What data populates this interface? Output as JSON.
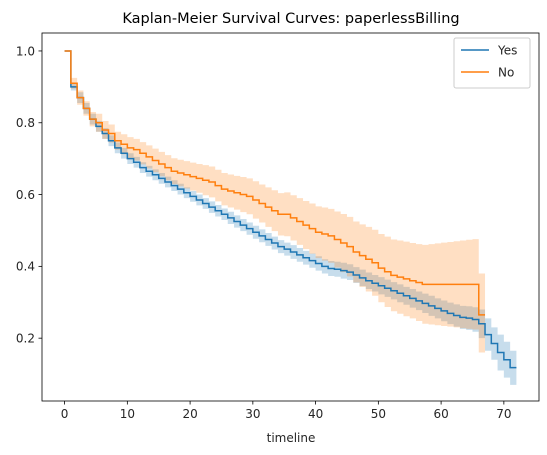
{
  "chart_data": {
    "type": "line",
    "step": true,
    "title": "Kaplan-Meier Survival Curves: paperlessBilling",
    "xlabel": "timeline",
    "ylabel": "",
    "xlim": [
      -3.6,
      75.6
    ],
    "ylim": [
      0.025,
      1.05
    ],
    "x_ticks": [
      0,
      10,
      20,
      30,
      40,
      50,
      60,
      70
    ],
    "y_ticks": [
      0.2,
      0.4,
      0.6,
      0.8,
      1.0
    ],
    "x_tick_labels": [
      "0",
      "10",
      "20",
      "30",
      "40",
      "50",
      "60",
      "70"
    ],
    "y_tick_labels": [
      "0.2",
      "0.4",
      "0.6",
      "0.8",
      "1.0"
    ],
    "grid": false,
    "legend_position": "top-right",
    "series": [
      {
        "name": "Yes",
        "color": "#1f77b4",
        "band_color": "#1f77b4",
        "x": [
          0,
          1,
          2,
          3,
          4,
          5,
          6,
          7,
          8,
          9,
          10,
          11,
          12,
          13,
          14,
          15,
          16,
          17,
          18,
          19,
          20,
          21,
          22,
          23,
          24,
          25,
          26,
          27,
          28,
          29,
          30,
          31,
          32,
          33,
          34,
          35,
          36,
          37,
          38,
          39,
          40,
          41,
          42,
          43,
          44,
          45,
          46,
          47,
          48,
          49,
          50,
          51,
          52,
          53,
          54,
          55,
          56,
          57,
          58,
          59,
          60,
          61,
          62,
          63,
          64,
          65,
          66,
          67,
          68,
          69,
          70,
          71,
          72
        ],
        "y": [
          1.0,
          0.9,
          0.87,
          0.84,
          0.81,
          0.79,
          0.77,
          0.75,
          0.73,
          0.715,
          0.7,
          0.69,
          0.675,
          0.665,
          0.655,
          0.645,
          0.635,
          0.625,
          0.615,
          0.605,
          0.595,
          0.585,
          0.575,
          0.565,
          0.555,
          0.545,
          0.535,
          0.525,
          0.515,
          0.505,
          0.495,
          0.485,
          0.475,
          0.465,
          0.455,
          0.448,
          0.44,
          0.432,
          0.424,
          0.416,
          0.408,
          0.4,
          0.394,
          0.392,
          0.388,
          0.384,
          0.376,
          0.368,
          0.36,
          0.353,
          0.346,
          0.339,
          0.332,
          0.325,
          0.318,
          0.311,
          0.304,
          0.297,
          0.29,
          0.283,
          0.276,
          0.269,
          0.263,
          0.258,
          0.256,
          0.252,
          0.24,
          0.21,
          0.185,
          0.16,
          0.14,
          0.118,
          0.118
        ],
        "ci_lower": [
          1.0,
          0.89,
          0.855,
          0.825,
          0.795,
          0.775,
          0.755,
          0.735,
          0.715,
          0.7,
          0.685,
          0.675,
          0.66,
          0.65,
          0.64,
          0.63,
          0.62,
          0.61,
          0.6,
          0.59,
          0.58,
          0.57,
          0.56,
          0.549,
          0.539,
          0.529,
          0.518,
          0.508,
          0.498,
          0.488,
          0.477,
          0.467,
          0.457,
          0.447,
          0.437,
          0.43,
          0.421,
          0.413,
          0.405,
          0.396,
          0.388,
          0.38,
          0.373,
          0.371,
          0.366,
          0.362,
          0.354,
          0.345,
          0.337,
          0.33,
          0.322,
          0.315,
          0.308,
          0.3,
          0.293,
          0.285,
          0.278,
          0.27,
          0.262,
          0.255,
          0.247,
          0.239,
          0.232,
          0.226,
          0.223,
          0.218,
          0.2,
          0.165,
          0.14,
          0.11,
          0.09,
          0.07,
          0.07
        ],
        "ci_upper": [
          1.0,
          0.91,
          0.885,
          0.855,
          0.825,
          0.805,
          0.785,
          0.765,
          0.745,
          0.73,
          0.715,
          0.705,
          0.69,
          0.68,
          0.67,
          0.66,
          0.65,
          0.64,
          0.63,
          0.62,
          0.61,
          0.6,
          0.59,
          0.581,
          0.571,
          0.561,
          0.552,
          0.542,
          0.532,
          0.522,
          0.513,
          0.503,
          0.493,
          0.483,
          0.473,
          0.466,
          0.459,
          0.451,
          0.443,
          0.436,
          0.428,
          0.42,
          0.415,
          0.413,
          0.41,
          0.406,
          0.398,
          0.391,
          0.383,
          0.376,
          0.37,
          0.363,
          0.356,
          0.35,
          0.343,
          0.337,
          0.33,
          0.324,
          0.318,
          0.311,
          0.305,
          0.299,
          0.294,
          0.29,
          0.289,
          0.286,
          0.28,
          0.255,
          0.23,
          0.21,
          0.19,
          0.165,
          0.165
        ]
      },
      {
        "name": "No",
        "color": "#ff7f0e",
        "band_color": "#ff7f0e",
        "x": [
          0,
          1,
          2,
          3,
          4,
          5,
          6,
          7,
          8,
          9,
          10,
          11,
          12,
          13,
          14,
          15,
          16,
          17,
          18,
          19,
          20,
          21,
          22,
          23,
          24,
          25,
          26,
          27,
          28,
          29,
          30,
          31,
          32,
          33,
          34,
          35,
          36,
          37,
          38,
          39,
          40,
          41,
          42,
          43,
          44,
          45,
          46,
          47,
          48,
          49,
          50,
          51,
          52,
          53,
          54,
          55,
          56,
          57,
          58,
          59,
          60,
          61,
          62,
          63,
          64,
          65,
          66,
          67
        ],
        "y": [
          1.0,
          0.91,
          0.87,
          0.84,
          0.81,
          0.8,
          0.78,
          0.77,
          0.75,
          0.74,
          0.73,
          0.725,
          0.715,
          0.705,
          0.695,
          0.685,
          0.675,
          0.665,
          0.66,
          0.655,
          0.65,
          0.645,
          0.64,
          0.635,
          0.625,
          0.615,
          0.61,
          0.605,
          0.6,
          0.595,
          0.585,
          0.575,
          0.565,
          0.555,
          0.545,
          0.545,
          0.535,
          0.525,
          0.515,
          0.505,
          0.495,
          0.49,
          0.485,
          0.475,
          0.465,
          0.455,
          0.44,
          0.43,
          0.42,
          0.41,
          0.395,
          0.385,
          0.375,
          0.37,
          0.365,
          0.36,
          0.355,
          0.35,
          0.35,
          0.35,
          0.35,
          0.35,
          0.35,
          0.35,
          0.35,
          0.35,
          0.265,
          0.265
        ],
        "ci_lower": [
          1.0,
          0.895,
          0.85,
          0.82,
          0.79,
          0.775,
          0.755,
          0.745,
          0.725,
          0.712,
          0.7,
          0.695,
          0.684,
          0.673,
          0.662,
          0.651,
          0.64,
          0.629,
          0.623,
          0.617,
          0.611,
          0.605,
          0.598,
          0.592,
          0.581,
          0.57,
          0.564,
          0.558,
          0.551,
          0.545,
          0.533,
          0.522,
          0.51,
          0.498,
          0.486,
          0.484,
          0.472,
          0.46,
          0.448,
          0.435,
          0.423,
          0.416,
          0.41,
          0.397,
          0.384,
          0.372,
          0.355,
          0.343,
          0.33,
          0.318,
          0.3,
          0.287,
          0.275,
          0.268,
          0.261,
          0.255,
          0.248,
          0.24,
          0.238,
          0.236,
          0.234,
          0.232,
          0.23,
          0.228,
          0.226,
          0.224,
          0.16,
          0.16
        ],
        "ci_upper": [
          1.0,
          0.925,
          0.89,
          0.86,
          0.83,
          0.825,
          0.805,
          0.795,
          0.775,
          0.768,
          0.76,
          0.755,
          0.746,
          0.737,
          0.728,
          0.719,
          0.71,
          0.701,
          0.697,
          0.693,
          0.689,
          0.685,
          0.682,
          0.678,
          0.669,
          0.66,
          0.656,
          0.652,
          0.649,
          0.645,
          0.637,
          0.628,
          0.62,
          0.612,
          0.604,
          0.606,
          0.598,
          0.59,
          0.582,
          0.575,
          0.567,
          0.564,
          0.56,
          0.553,
          0.546,
          0.538,
          0.525,
          0.517,
          0.51,
          0.502,
          0.49,
          0.483,
          0.475,
          0.472,
          0.469,
          0.465,
          0.462,
          0.46,
          0.462,
          0.464,
          0.466,
          0.468,
          0.47,
          0.472,
          0.474,
          0.476,
          0.38,
          0.38
        ]
      }
    ]
  }
}
